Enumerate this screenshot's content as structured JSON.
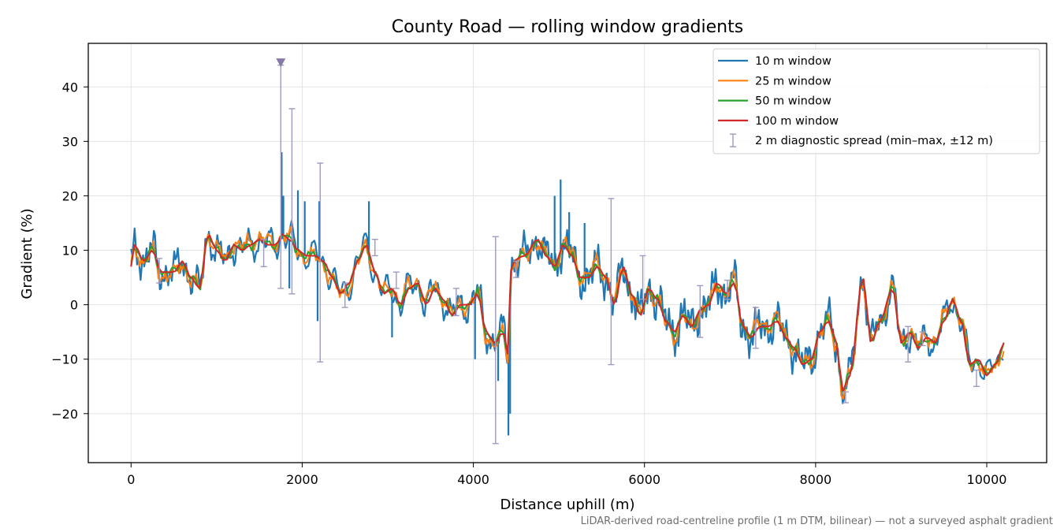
{
  "chart_data": {
    "type": "line",
    "title": "County Road — rolling window gradients",
    "xlabel": "Distance uphill (m)",
    "ylabel": "Gradient (%)",
    "xlim": [
      -500,
      10700
    ],
    "ylim": [
      -29,
      48
    ],
    "x_ticks": [
      0,
      2000,
      4000,
      6000,
      8000,
      10000
    ],
    "x_tick_labels": [
      "0",
      "2000",
      "4000",
      "6000",
      "8000",
      "10000"
    ],
    "y_ticks": [
      -20,
      -10,
      0,
      10,
      20,
      30,
      40
    ],
    "y_tick_labels": [
      "−20",
      "−10",
      "0",
      "10",
      "20",
      "30",
      "40"
    ],
    "grid": true,
    "legend_position": "top-right",
    "footnote": "LiDAR-derived road-centreline profile (1 m DTM, bilinear) — not a surveyed asphalt gradient",
    "x_start": 0,
    "x_end": 10200,
    "series": [
      {
        "name": "10 m window",
        "color": "#1f77b4",
        "noise": 3.2,
        "step": 14
      },
      {
        "name": "25 m window",
        "color": "#ff7f0e",
        "noise": 1.8,
        "step": 20
      },
      {
        "name": "50 m window",
        "color": "#2ca02c",
        "noise": 0.8,
        "step": 30
      },
      {
        "name": "100 m window",
        "color": "#d62728",
        "noise": 0.0,
        "step": 40
      }
    ],
    "trend": {
      "x": [
        0,
        40,
        150,
        250,
        350,
        500,
        600,
        700,
        800,
        900,
        1000,
        1100,
        1200,
        1300,
        1400,
        1500,
        1600,
        1700,
        1760,
        1850,
        1950,
        2050,
        2150,
        2250,
        2350,
        2450,
        2550,
        2650,
        2750,
        2850,
        2950,
        3050,
        3150,
        3250,
        3350,
        3450,
        3550,
        3650,
        3750,
        3850,
        3950,
        4050,
        4150,
        4250,
        4350,
        4400,
        4450,
        4600,
        4750,
        4850,
        4950,
        5050,
        5150,
        5250,
        5350,
        5450,
        5550,
        5650,
        5750,
        5850,
        5950,
        6050,
        6150,
        6250,
        6350,
        6450,
        6550,
        6650,
        6750,
        6850,
        6950,
        7050,
        7150,
        7250,
        7350,
        7450,
        7550,
        7650,
        7750,
        7850,
        7950,
        8050,
        8150,
        8250,
        8310,
        8400,
        8550,
        8650,
        8750,
        8900,
        9000,
        9100,
        9200,
        9300,
        9400,
        9500,
        9600,
        9700,
        9800,
        9900,
        10000,
        10100,
        10200
      ],
      "y": [
        7,
        11,
        8,
        10,
        6,
        6,
        8,
        5,
        3,
        13,
        10,
        8,
        11,
        10,
        11,
        12,
        11,
        11,
        13,
        12,
        10,
        9,
        9,
        8,
        5,
        2,
        4,
        8,
        11,
        6,
        2,
        3,
        0,
        3,
        4,
        0,
        3,
        1,
        -2,
        0,
        0,
        2,
        -5,
        -7,
        -5,
        -9,
        8,
        9,
        12,
        9,
        7,
        11,
        9,
        5,
        5,
        7,
        5,
        0,
        7,
        2,
        -2,
        3,
        1,
        -3,
        -5,
        -2,
        -4,
        -1,
        0,
        4,
        2,
        4,
        -4,
        -6,
        -4,
        -4,
        -3,
        -6,
        -8,
        -11,
        -10,
        -5,
        -3,
        -7,
        -16,
        -13,
        5,
        -7,
        -3,
        3,
        -7,
        -5,
        -8,
        -6,
        -7,
        -3,
        1,
        -3,
        -11,
        -10,
        -13,
        -11,
        -7
      ]
    },
    "spikes": [
      {
        "x": 1760,
        "y": 28
      },
      {
        "x": 1780,
        "y": 20
      },
      {
        "x": 1950,
        "y": 21
      },
      {
        "x": 2030,
        "y": 19
      },
      {
        "x": 2200,
        "y": 19
      },
      {
        "x": 2780,
        "y": 19
      },
      {
        "x": 3050,
        "y": -6
      },
      {
        "x": 4020,
        "y": -10
      },
      {
        "x": 4290,
        "y": -14
      },
      {
        "x": 4410,
        "y": -24
      },
      {
        "x": 4430,
        "y": -20
      },
      {
        "x": 4950,
        "y": 20
      },
      {
        "x": 5020,
        "y": 23
      },
      {
        "x": 5120,
        "y": 17
      },
      {
        "x": 5300,
        "y": 15
      },
      {
        "x": 2180,
        "y": -3
      },
      {
        "x": 1850,
        "y": 3
      }
    ],
    "error_bars": [
      {
        "x": 1750,
        "low": 3,
        "high": 44
      },
      {
        "x": 1880,
        "low": 2,
        "high": 36
      },
      {
        "x": 2210,
        "low": -10.5,
        "high": 26
      },
      {
        "x": 4260,
        "low": -25.5,
        "high": 12.5
      },
      {
        "x": 5610,
        "low": -11,
        "high": 19.5
      },
      {
        "x": 330,
        "low": 4,
        "high": 8.5
      },
      {
        "x": 1550,
        "low": 7,
        "high": 12
      },
      {
        "x": 2850,
        "low": 9,
        "high": 12
      },
      {
        "x": 2500,
        "low": -0.5,
        "high": 4
      },
      {
        "x": 3100,
        "low": 3,
        "high": 6
      },
      {
        "x": 3800,
        "low": -2,
        "high": 3
      },
      {
        "x": 4500,
        "low": 5,
        "high": 8
      },
      {
        "x": 5980,
        "low": 1,
        "high": 9
      },
      {
        "x": 6650,
        "low": -6,
        "high": 3.5
      },
      {
        "x": 6970,
        "low": 1,
        "high": 4.5
      },
      {
        "x": 7300,
        "low": -8,
        "high": -0.5
      },
      {
        "x": 8350,
        "low": -18,
        "high": -16
      },
      {
        "x": 9080,
        "low": -10.5,
        "high": -4
      },
      {
        "x": 9250,
        "low": -7.5,
        "high": -5
      },
      {
        "x": 9880,
        "low": -15,
        "high": -12
      }
    ],
    "marker": {
      "x": 1750,
      "y": 44.5,
      "shape": "triangle-down",
      "color": "#8878a8"
    },
    "error_bar_label": "2 m diagnostic spread (min–max, ±12 m)",
    "error_bar_color": "#9e9ac0"
  }
}
